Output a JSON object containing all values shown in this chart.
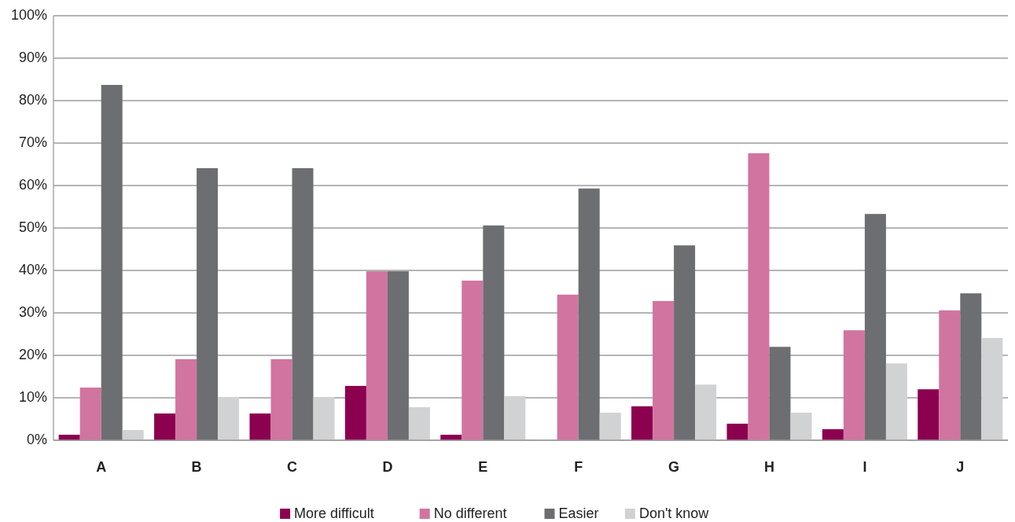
{
  "chart_data": {
    "type": "bar",
    "categories": [
      "A",
      "B",
      "C",
      "D",
      "E",
      "F",
      "G",
      "H",
      "I",
      "J"
    ],
    "series": [
      {
        "name": "More difficult",
        "color": "#8c0050",
        "values": [
          1.3,
          6.3,
          6.3,
          12.8,
          1.3,
          0,
          8.0,
          3.9,
          2.6,
          12.0
        ]
      },
      {
        "name": "No different",
        "color": "#d174a0",
        "values": [
          12.4,
          19.1,
          19.1,
          39.8,
          37.6,
          34.3,
          32.8,
          67.6,
          25.9,
          30.6
        ]
      },
      {
        "name": "Easier",
        "color": "#6d6e71",
        "values": [
          83.7,
          64.1,
          64.1,
          39.8,
          50.6,
          59.3,
          45.9,
          22.0,
          53.3,
          34.6
        ]
      },
      {
        "name": "Don't know",
        "color": "#d1d2d4",
        "values": [
          2.4,
          10.2,
          10.2,
          7.8,
          10.4,
          6.5,
          13.1,
          6.5,
          18.1,
          24.1
        ]
      }
    ],
    "ylim": [
      0,
      100
    ],
    "yticks": [
      {
        "value": 0,
        "label": "0%"
      },
      {
        "value": 10,
        "label": "10%"
      },
      {
        "value": 20,
        "label": "20%"
      },
      {
        "value": 30,
        "label": "30%"
      },
      {
        "value": 40,
        "label": "40%"
      },
      {
        "value": 50,
        "label": "50%"
      },
      {
        "value": 60,
        "label": "60%"
      },
      {
        "value": 70,
        "label": "70%"
      },
      {
        "value": 80,
        "label": "80%"
      },
      {
        "value": 90,
        "label": "90%"
      },
      {
        "value": 100,
        "label": "100%"
      }
    ],
    "grid": "y",
    "legend": "bottom"
  }
}
